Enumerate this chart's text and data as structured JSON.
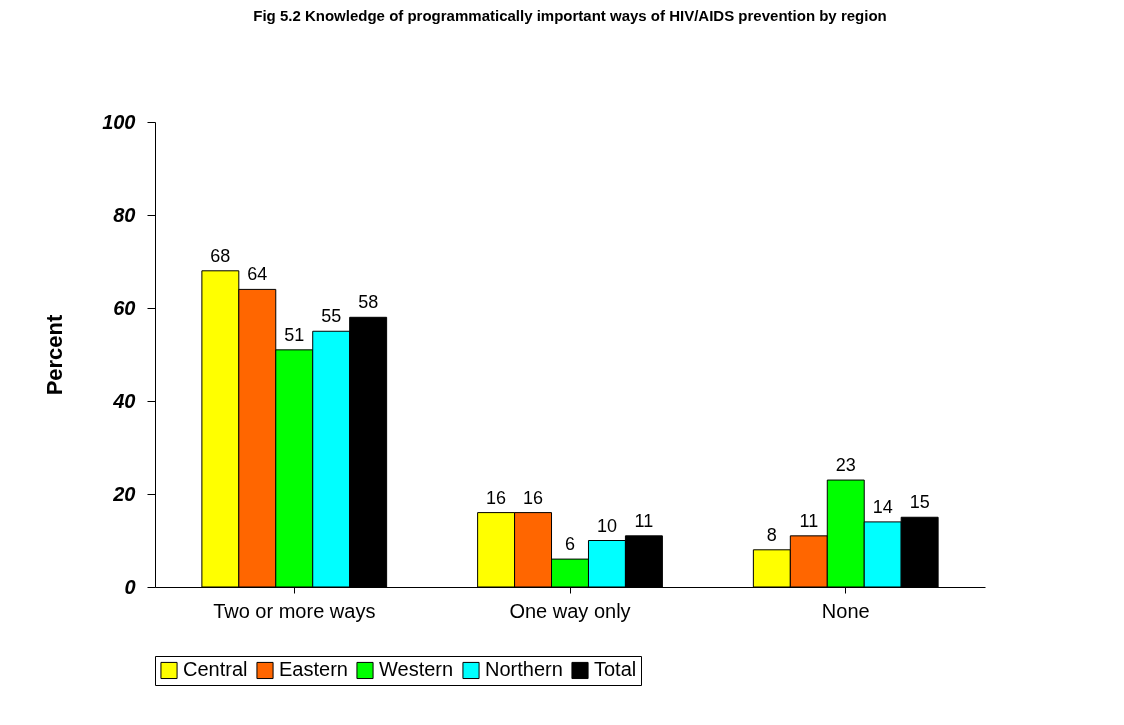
{
  "chart_data": {
    "type": "bar",
    "title": "Fig 5.2 Knowledge of programmatically important ways of HIV/AIDS prevention by region",
    "ylabel": "Percent",
    "categories": [
      "Two or more ways",
      "One way only",
      "None"
    ],
    "series": [
      {
        "name": "Central",
        "color": "#ffff00",
        "values": [
          68,
          16,
          8
        ]
      },
      {
        "name": "Eastern",
        "color": "#ff6600",
        "values": [
          64,
          16,
          11
        ]
      },
      {
        "name": "Western",
        "color": "#00ff00",
        "values": [
          51,
          6,
          23
        ]
      },
      {
        "name": "Northern",
        "color": "#00ffff",
        "values": [
          55,
          10,
          14
        ]
      },
      {
        "name": "Total",
        "color": "#000000",
        "values": [
          58,
          11,
          15
        ]
      }
    ],
    "ylim": [
      0,
      100
    ],
    "yticks": [
      0,
      20,
      40,
      60,
      80,
      100
    ],
    "grid": false,
    "legend": "bottom",
    "data_labels": true
  }
}
